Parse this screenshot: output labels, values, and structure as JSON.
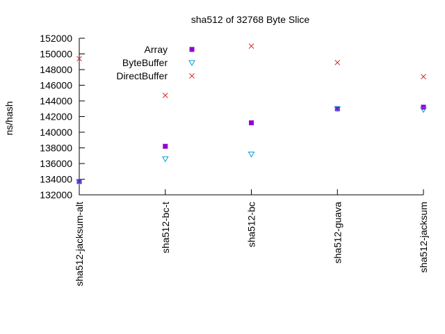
{
  "chart_data": {
    "type": "scatter",
    "title": "sha512 of 32768 Byte Slice",
    "ylabel": "ns/hash",
    "xlabel": "",
    "categories": [
      "sha512-jacksum-alt",
      "sha512-bc-t",
      "sha512-bc",
      "sha512-guava",
      "sha512-jacksum"
    ],
    "ylim": [
      132000,
      152000
    ],
    "yticks": [
      132000,
      134000,
      136000,
      138000,
      140000,
      142000,
      144000,
      146000,
      148000,
      150000,
      152000
    ],
    "legend_position": "top-left",
    "grid": false,
    "series": [
      {
        "name": "Array",
        "marker": "square",
        "color": "#9400d3",
        "values": [
          133700,
          138200,
          141200,
          143000,
          143200
        ]
      },
      {
        "name": "ByteBuffer",
        "marker": "triangle-down",
        "color": "#009ed7",
        "values": [
          133700,
          136600,
          137200,
          143000,
          142900
        ]
      },
      {
        "name": "DirectBuffer",
        "marker": "x",
        "color": "#d62728",
        "values": [
          149400,
          144700,
          151000,
          148900,
          147100
        ]
      }
    ]
  }
}
